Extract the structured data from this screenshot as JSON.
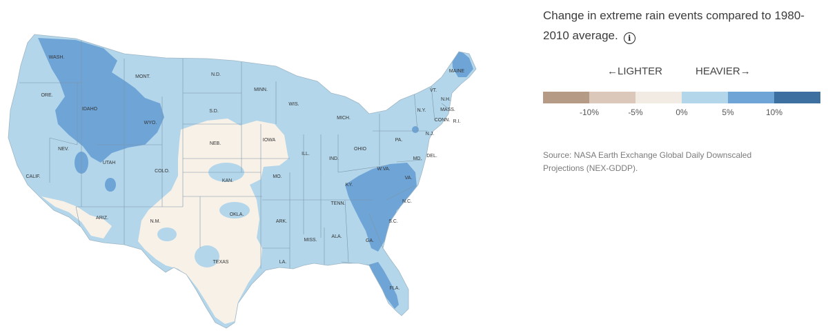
{
  "legend": {
    "title": "Change in extreme rain events compared to 1980-2010 average.",
    "info_icon": "info-icon",
    "lighter_label": "←LIGHTER",
    "heavier_label": "HEAVIER→",
    "bins": [
      {
        "color": "#b59a86",
        "range": "below -10%"
      },
      {
        "color": "#dcc8ba",
        "range": "-10% to -5%"
      },
      {
        "color": "#f1ebe4",
        "range": "-5% to 0%"
      },
      {
        "color": "#b3d6ea",
        "range": "0% to 5%"
      },
      {
        "color": "#6fa4d6",
        "range": "5% to 10%"
      },
      {
        "color": "#3d6fa0",
        "range": "above 10%"
      }
    ],
    "tick_labels": [
      "-10%",
      "-5%",
      "0%",
      "5%",
      "10%"
    ]
  },
  "source": "Source: NASA Earth Exchange Global Daily Downscaled Projections (NEX-GDDP).",
  "map": {
    "colors": {
      "base": "#b3d6ea",
      "wet": "#6fa4d6",
      "dry": "#f8f1e8",
      "border": "#7d96a8"
    },
    "state_labels": [
      "WASH.",
      "ORE.",
      "IDAHO",
      "MONT.",
      "WYO.",
      "NEV.",
      "UTAH",
      "CALIF.",
      "ARIZ.",
      "COLO.",
      "N.M.",
      "N.D.",
      "S.D.",
      "NEB.",
      "KAN.",
      "OKLA.",
      "TEXAS",
      "MINN.",
      "IOWA",
      "MO.",
      "ARK.",
      "LA.",
      "WIS.",
      "ILL.",
      "MICH.",
      "IND.",
      "OHIO",
      "KY.",
      "TENN.",
      "MISS.",
      "ALA.",
      "GA.",
      "FLA.",
      "S.C.",
      "N.C.",
      "VA.",
      "W.VA.",
      "MD.",
      "DEL.",
      "PA.",
      "N.J.",
      "N.Y.",
      "CONN.",
      "R.I.",
      "MASS.",
      "VT.",
      "N.H.",
      "MAINE"
    ]
  }
}
